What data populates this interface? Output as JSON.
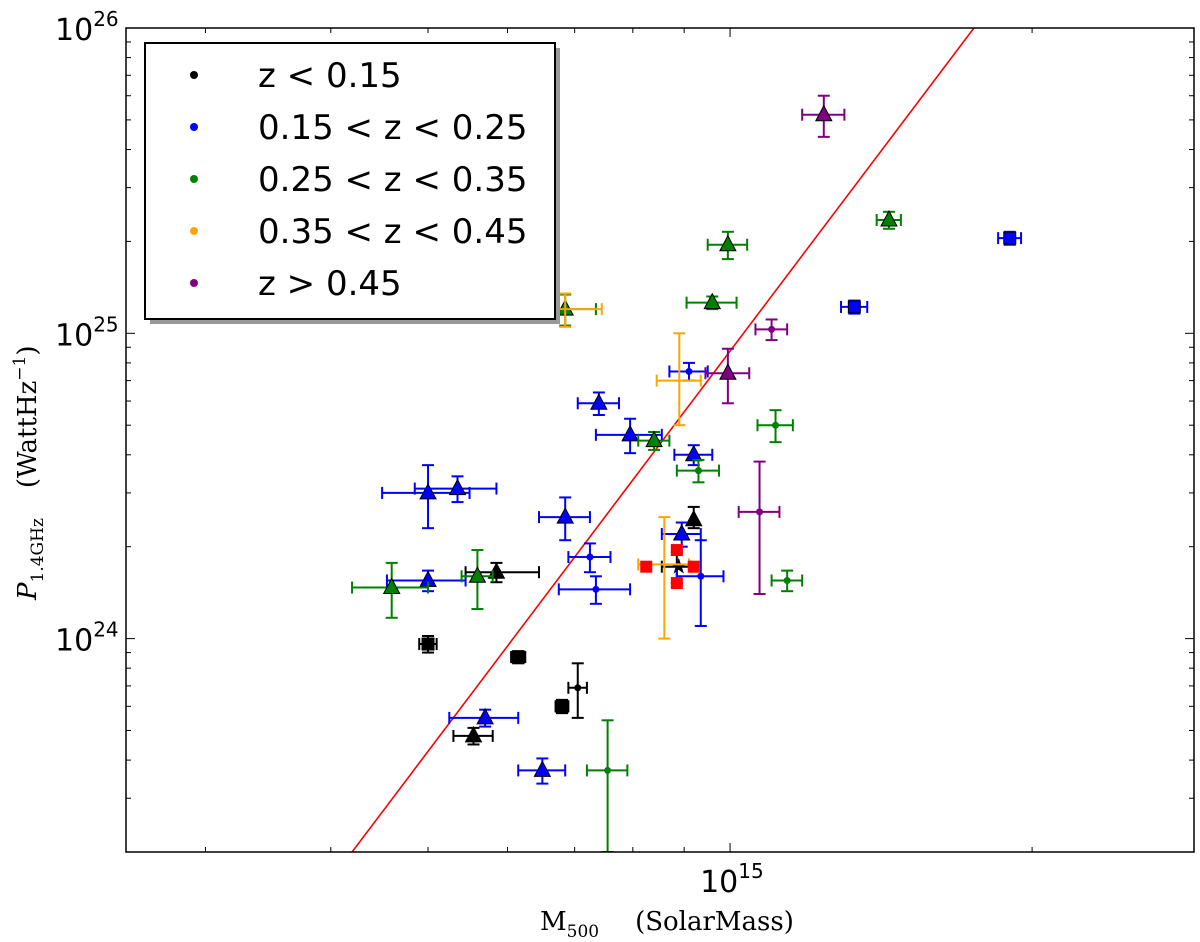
{
  "chart_data": {
    "type": "scatter",
    "xscale": "log",
    "yscale": "log",
    "xlim": [
      250000000000000.0,
      2900000000000000.0
    ],
    "ylim": [
      2e+23,
      1e+26
    ],
    "xlabel": {
      "main": "M",
      "sub": "500",
      "unit": "(SolarMass)"
    },
    "ylabel": {
      "main": "P",
      "sub": "1.4GHz",
      "unit": "(WattHz",
      "sup": "−1",
      "close": ")"
    },
    "xticks": [
      {
        "value": 1000000000000000.0,
        "base": "10",
        "exp": "15"
      }
    ],
    "yticks": [
      {
        "value": 1e+24,
        "base": "10",
        "exp": "24"
      },
      {
        "value": 1e+25,
        "base": "10",
        "exp": "25"
      },
      {
        "value": 1e+26,
        "base": "10",
        "exp": "26"
      }
    ],
    "fit_line": {
      "color": "#ff0000",
      "points": [
        [
          420000000000000.0,
          2e+23
        ],
        [
          1750000000000000.0,
          1e+26
        ]
      ]
    },
    "legend": {
      "placement": "top-left",
      "entries": [
        {
          "label": "z < 0.15",
          "color": "#000000"
        },
        {
          "label": "0.15 < z < 0.25",
          "color": "#0000ff"
        },
        {
          "label": "0.25 < z < 0.35",
          "color": "#008000"
        },
        {
          "label": "0.35 < z < 0.45",
          "color": "#ffa500"
        },
        {
          "label": "z > 0.45",
          "color": "#800080"
        }
      ]
    },
    "series": [
      {
        "name": "z < 0.15",
        "color": "#000000",
        "points": [
          {
            "x": 920000000000000.0,
            "y": 2.45e+24,
            "xerr": [
              2000000000000.0,
              2000000000000.0
            ],
            "yerr": [
              1.5e+23,
              2.5e+23
            ],
            "marker": "triangle"
          },
          {
            "x": 585000000000000.0,
            "y": 1.65e+24,
            "xerr": [
              40000000000000.0,
              60000000000000.0
            ],
            "yerr": [
              1.2e+23,
              1.2e+23
            ],
            "marker": "triangle"
          },
          {
            "x": 500000000000000.0,
            "y": 9.6e+23,
            "xerr": [
              10000000000000.0,
              10000000000000.0
            ],
            "yerr": [
              6e+22,
              6e+22
            ],
            "marker": "square"
          },
          {
            "x": 615000000000000.0,
            "y": 8.7e+23,
            "xerr": [
              10000000000000.0,
              10000000000000.0
            ],
            "yerr": [
              4e+22,
              4e+22
            ],
            "marker": "square"
          },
          {
            "x": 680000000000000.0,
            "y": 6e+23,
            "xerr": [
              10000000000000.0,
              10000000000000.0
            ],
            "yerr": [
              3e+22,
              3e+22
            ],
            "marker": "square"
          },
          {
            "x": 705000000000000.0,
            "y": 6.9e+23,
            "xerr": [
              15000000000000.0,
              15000000000000.0
            ],
            "yerr": [
              1.4e+23,
              1.4e+23
            ],
            "marker": "dot"
          },
          {
            "x": 555000000000000.0,
            "y": 4.8e+23,
            "xerr": [
              25000000000000.0,
              25000000000000.0
            ],
            "yerr": [
              3e+22,
              3e+22
            ],
            "marker": "triangle"
          },
          {
            "x": 885000000000000.0,
            "y": 1.72e+24,
            "xerr": [
              30000000000000.0,
              30000000000000.0
            ],
            "yerr": [
              2e+23,
              2e+23
            ],
            "marker": "star"
          }
        ]
      },
      {
        "name": "0.15 < z < 0.25",
        "color": "#0000ff",
        "points": [
          {
            "x": 1900000000000000.0,
            "y": 2.05e+25,
            "xerr": [
              50000000000000.0,
              50000000000000.0
            ],
            "yerr": [
              1e+24,
              1e+24
            ],
            "marker": "square"
          },
          {
            "x": 1330000000000000.0,
            "y": 1.22e+25,
            "xerr": [
              40000000000000.0,
              40000000000000.0
            ],
            "yerr": [
              6e+23,
              6e+23
            ],
            "marker": "square"
          },
          {
            "x": 910000000000000.0,
            "y": 7.5e+24,
            "xerr": [
              40000000000000.0,
              40000000000000.0
            ],
            "yerr": [
              5e+23,
              5e+23
            ],
            "marker": "dot"
          },
          {
            "x": 740000000000000.0,
            "y": 5.9e+24,
            "xerr": [
              35000000000000.0,
              35000000000000.0
            ],
            "yerr": [
              5e+23,
              5e+23
            ],
            "marker": "triangle"
          },
          {
            "x": 795000000000000.0,
            "y": 4.65e+24,
            "xerr": [
              60000000000000.0,
              60000000000000.0
            ],
            "yerr": [
              6e+23,
              6e+23
            ],
            "marker": "triangle"
          },
          {
            "x": 920000000000000.0,
            "y": 4e+24,
            "xerr": [
              40000000000000.0,
              40000000000000.0
            ],
            "yerr": [
              3e+23,
              3e+23
            ],
            "marker": "triangle"
          },
          {
            "x": 500000000000000.0,
            "y": 3e+24,
            "xerr": [
              50000000000000.0,
              50000000000000.0
            ],
            "yerr": [
              7e+23,
              7e+23
            ],
            "marker": "triangle"
          },
          {
            "x": 535000000000000.0,
            "y": 3.1e+24,
            "xerr": [
              50000000000000.0,
              50000000000000.0
            ],
            "yerr": [
              3e+23,
              3e+23
            ],
            "marker": "triangle"
          },
          {
            "x": 685000000000000.0,
            "y": 2.5e+24,
            "xerr": [
              40000000000000.0,
              40000000000000.0
            ],
            "yerr": [
              4e+23,
              4e+23
            ],
            "marker": "triangle"
          },
          {
            "x": 895000000000000.0,
            "y": 2.2e+24,
            "xerr": [
              40000000000000.0,
              40000000000000.0
            ],
            "yerr": [
              2e+23,
              2e+23
            ],
            "marker": "triangle"
          },
          {
            "x": 725000000000000.0,
            "y": 1.85e+24,
            "xerr": [
              35000000000000.0,
              35000000000000.0
            ],
            "yerr": [
              2e+23,
              2e+23
            ],
            "marker": "dot"
          },
          {
            "x": 735000000000000.0,
            "y": 1.45e+24,
            "xerr": [
              60000000000000.0,
              60000000000000.0
            ],
            "yerr": [
              1.5e+23,
              1.5e+23
            ],
            "marker": "dot"
          },
          {
            "x": 935000000000000.0,
            "y": 1.6e+24,
            "xerr": [
              50000000000000.0,
              50000000000000.0
            ],
            "yerr": [
              5e+23,
              5e+23
            ],
            "marker": "dot"
          },
          {
            "x": 500000000000000.0,
            "y": 1.55e+24,
            "xerr": [
              45000000000000.0,
              45000000000000.0
            ],
            "yerr": [
              1.2e+23,
              1.2e+23
            ],
            "marker": "triangle"
          },
          {
            "x": 570000000000000.0,
            "y": 5.5e+23,
            "xerr": [
              45000000000000.0,
              45000000000000.0
            ],
            "yerr": [
              3.5e+22,
              3.5e+22
            ],
            "marker": "triangle"
          },
          {
            "x": 650000000000000.0,
            "y": 3.7e+23,
            "xerr": [
              35000000000000.0,
              35000000000000.0
            ],
            "yerr": [
              3.5e+22,
              3.5e+22
            ],
            "marker": "triangle"
          }
        ]
      },
      {
        "name": "0.25 < z < 0.35",
        "color": "#008000",
        "points": [
          {
            "x": 1440000000000000.0,
            "y": 2.35e+25,
            "xerr": [
              40000000000000.0,
              40000000000000.0
            ],
            "yerr": [
              1.5e+24,
              1.5e+24
            ],
            "marker": "triangle"
          },
          {
            "x": 995000000000000.0,
            "y": 1.95e+25,
            "xerr": [
              45000000000000.0,
              45000000000000.0
            ],
            "yerr": [
              2e+24,
              2e+24
            ],
            "marker": "triangle"
          },
          {
            "x": 960000000000000.0,
            "y": 1.26e+25,
            "xerr": [
              55000000000000.0,
              55000000000000.0
            ],
            "yerr": [
              6e+23,
              6e+23
            ],
            "marker": "triangle"
          },
          {
            "x": 685000000000000.0,
            "y": 1.2e+25,
            "xerr": [
              50000000000000.0,
              50000000000000.0
            ],
            "yerr": [
              1.4e+24,
              1.4e+24
            ],
            "marker": "triangle"
          },
          {
            "x": 840000000000000.0,
            "y": 4.45e+24,
            "xerr": [
              30000000000000.0,
              30000000000000.0
            ],
            "yerr": [
              3e+23,
              3e+23
            ],
            "marker": "triangle"
          },
          {
            "x": 1110000000000000.0,
            "y": 5e+24,
            "xerr": [
              45000000000000.0,
              45000000000000.0
            ],
            "yerr": [
              6e+23,
              6e+23
            ],
            "marker": "dot"
          },
          {
            "x": 930000000000000.0,
            "y": 3.55e+24,
            "xerr": [
              45000000000000.0,
              45000000000000.0
            ],
            "yerr": [
              3e+23,
              3e+23
            ],
            "marker": "dot"
          },
          {
            "x": 460000000000000.0,
            "y": 1.47e+24,
            "xerr": [
              40000000000000.0,
              40000000000000.0
            ],
            "yerr": [
              3e+23,
              3e+23
            ],
            "marker": "triangle"
          },
          {
            "x": 560000000000000.0,
            "y": 1.6e+24,
            "xerr": [
              20000000000000.0,
              20000000000000.0
            ],
            "yerr": [
              3.5e+23,
              3.5e+23
            ],
            "marker": "triangle"
          },
          {
            "x": 1140000000000000.0,
            "y": 1.55e+24,
            "xerr": [
              40000000000000.0,
              40000000000000.0
            ],
            "yerr": [
              1.2e+23,
              1.2e+23
            ],
            "marker": "dot"
          },
          {
            "x": 755000000000000.0,
            "y": 3.7e+23,
            "xerr": [
              35000000000000.0,
              35000000000000.0
            ],
            "yerr": [
              1.7e+23,
              1.7e+23
            ],
            "marker": "dot"
          }
        ]
      },
      {
        "name": "0.35 < z < 0.45",
        "color": "#ffa500",
        "points": [
          {
            "x": 685000000000000.0,
            "y": 1.2e+25,
            "xerr": [
              60000000000000.0,
              60000000000000.0
            ],
            "yerr": [
              1.5e+24,
              1.5e+24
            ],
            "marker": "none"
          },
          {
            "x": 890000000000000.0,
            "y": 7e+24,
            "xerr": [
              45000000000000.0,
              45000000000000.0
            ],
            "yerr": [
              2e+24,
              3e+24
            ],
            "marker": "none"
          },
          {
            "x": 860000000000000.0,
            "y": 1.75e+24,
            "xerr": [
              50000000000000.0,
              50000000000000.0
            ],
            "yerr": [
              7.5e+23,
              7.5e+23
            ],
            "marker": "none"
          }
        ]
      },
      {
        "name": "z > 0.45",
        "color": "#800080",
        "points": [
          {
            "x": 1240000000000000.0,
            "y": 5.2e+25,
            "xerr": [
              60000000000000.0,
              60000000000000.0
            ],
            "yerr": [
              8e+24,
              8e+24
            ],
            "marker": "triangle"
          },
          {
            "x": 1100000000000000.0,
            "y": 1.03e+25,
            "xerr": [
              40000000000000.0,
              40000000000000.0
            ],
            "yerr": [
              8e+23,
              8e+23
            ],
            "marker": "dot"
          },
          {
            "x": 995000000000000.0,
            "y": 7.4e+24,
            "xerr": [
              50000000000000.0,
              50000000000000.0
            ],
            "yerr": [
              1.5e+24,
              1.5e+24
            ],
            "marker": "triangle"
          },
          {
            "x": 1070000000000000.0,
            "y": 2.6e+24,
            "xerr": [
              50000000000000.0,
              50000000000000.0
            ],
            "yerr": [
              1.2e+24,
              1.2e+24
            ],
            "marker": "dot"
          }
        ]
      },
      {
        "name": "highlight",
        "color": "#ff0000",
        "points": [
          {
            "x": 825000000000000.0,
            "y": 1.72e+24,
            "marker": "red-square"
          },
          {
            "x": 920000000000000.0,
            "y": 1.72e+24,
            "marker": "red-square"
          },
          {
            "x": 885000000000000.0,
            "y": 1.95e+24,
            "marker": "red-square"
          },
          {
            "x": 885000000000000.0,
            "y": 1.52e+24,
            "marker": "red-square"
          }
        ]
      }
    ]
  }
}
